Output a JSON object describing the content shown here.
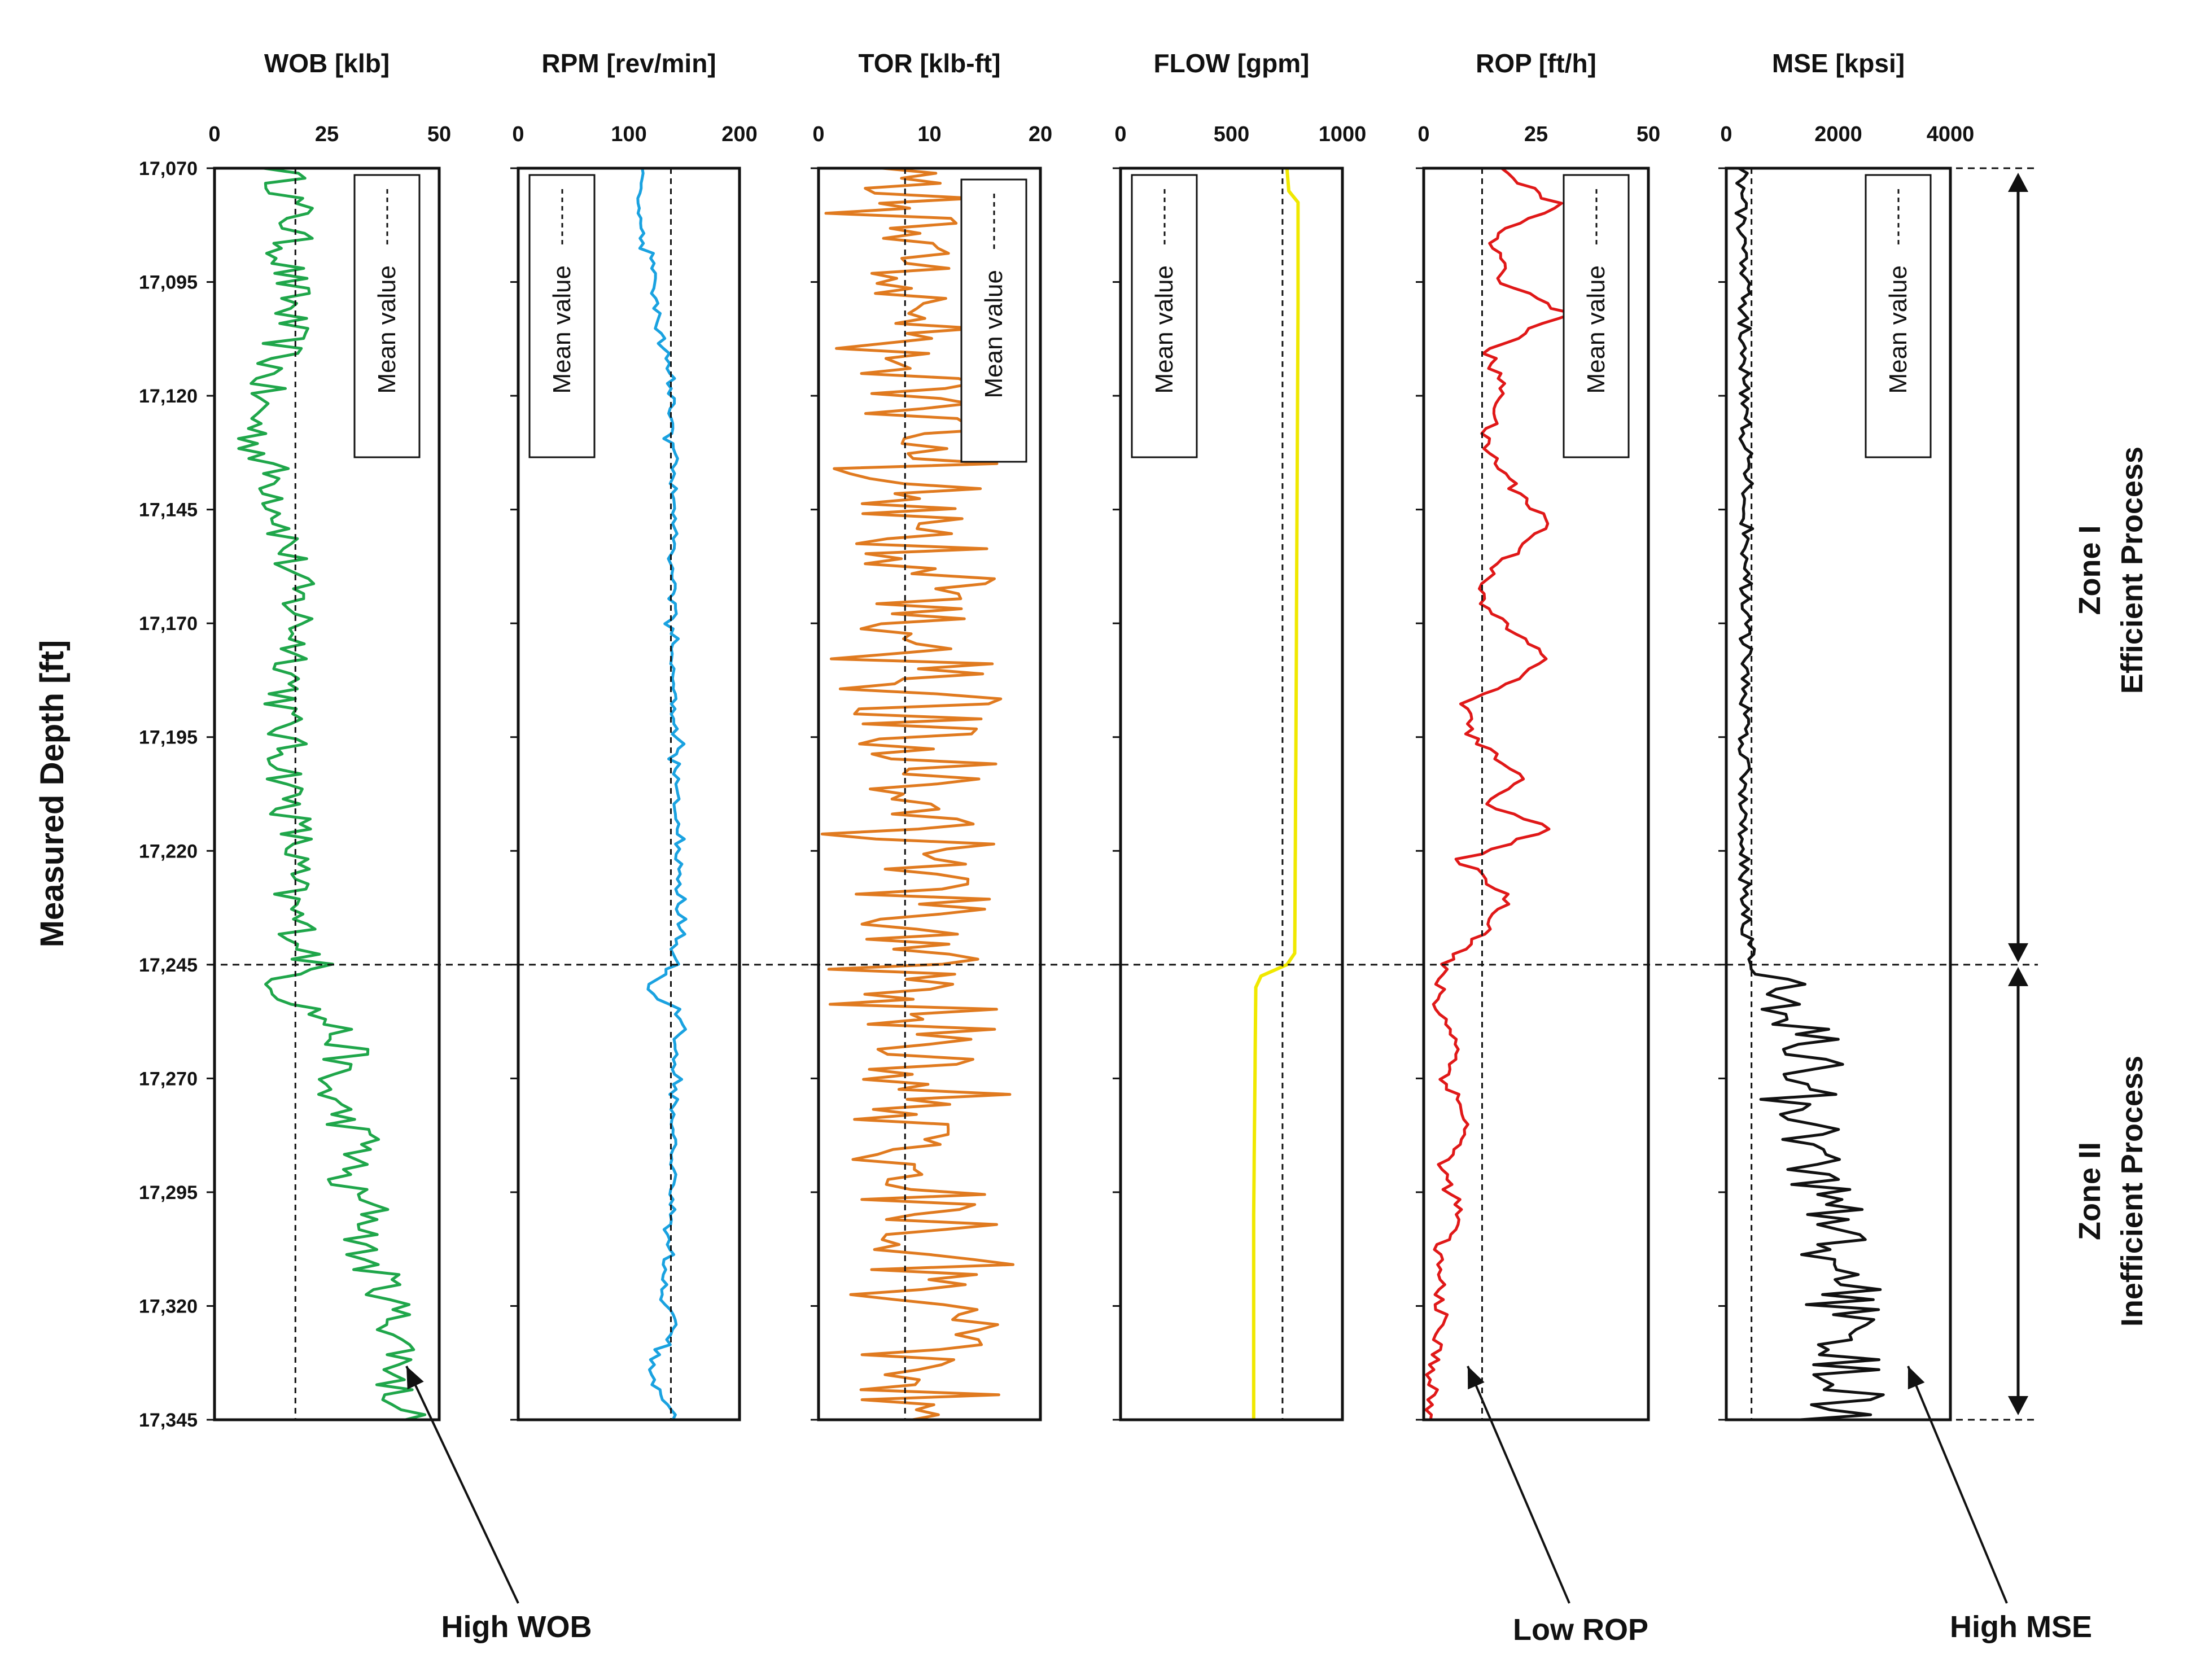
{
  "chart_data": {
    "type": "line",
    "y_axis": {
      "title": "Measured Depth [ft]",
      "range": [
        17070,
        17345
      ],
      "ticks": [
        "17,070",
        "17,095",
        "17,120",
        "17,145",
        "17,170",
        "17,195",
        "17,220",
        "17,245",
        "17,270",
        "17,295",
        "17,320",
        "17,345"
      ],
      "tick_values": [
        17070,
        17095,
        17120,
        17145,
        17170,
        17195,
        17220,
        17245,
        17270,
        17295,
        17320,
        17345
      ],
      "inverted": true
    },
    "legend_label": "Mean value",
    "zone_boundary_depth": 17245,
    "zones": [
      {
        "name": "Zone I",
        "label": "Efficient Process",
        "from": 17070,
        "to": 17245
      },
      {
        "name": "Zone II",
        "label": "Inefficient Process",
        "from": 17245,
        "to": 17345
      }
    ],
    "tracks": [
      {
        "key": "wob",
        "title": "WOB [klb]",
        "xlim": [
          0,
          50
        ],
        "ticks": [
          0,
          25,
          50
        ],
        "tick_labels": [
          "0",
          "25",
          "50"
        ],
        "color": "#1fa64a",
        "mean": 18,
        "knots": [
          [
            17070,
            15
          ],
          [
            17080,
            18
          ],
          [
            17090,
            16
          ],
          [
            17100,
            17
          ],
          [
            17110,
            15
          ],
          [
            17120,
            10
          ],
          [
            17130,
            9
          ],
          [
            17140,
            14
          ],
          [
            17150,
            16
          ],
          [
            17160,
            17
          ],
          [
            17170,
            19
          ],
          [
            17180,
            18
          ],
          [
            17190,
            15
          ],
          [
            17200,
            16
          ],
          [
            17210,
            17
          ],
          [
            17220,
            18
          ],
          [
            17230,
            16
          ],
          [
            17240,
            20
          ],
          [
            17245,
            22
          ],
          [
            17250,
            14
          ],
          [
            17258,
            26
          ],
          [
            17265,
            30
          ],
          [
            17270,
            24
          ],
          [
            17278,
            28
          ],
          [
            17285,
            34
          ],
          [
            17292,
            27
          ],
          [
            17300,
            36
          ],
          [
            17308,
            32
          ],
          [
            17315,
            38
          ],
          [
            17322,
            40
          ],
          [
            17330,
            42
          ],
          [
            17338,
            40
          ],
          [
            17345,
            44
          ]
        ],
        "noise": 5
      },
      {
        "key": "rpm",
        "title": "RPM [rev/min]",
        "xlim": [
          0,
          200
        ],
        "ticks": [
          0,
          100,
          200
        ],
        "tick_labels": [
          "0",
          "100",
          "200"
        ],
        "color": "#1aa2e0",
        "mean": 138,
        "knots": [
          [
            17070,
            110
          ],
          [
            17087,
            112
          ],
          [
            17088,
            122
          ],
          [
            17105,
            124
          ],
          [
            17106,
            132
          ],
          [
            17120,
            138
          ],
          [
            17140,
            141
          ],
          [
            17180,
            140
          ],
          [
            17220,
            144
          ],
          [
            17245,
            144
          ],
          [
            17250,
            113
          ],
          [
            17256,
            145
          ],
          [
            17270,
            140
          ],
          [
            17300,
            140
          ],
          [
            17315,
            130
          ],
          [
            17325,
            142
          ],
          [
            17335,
            118
          ],
          [
            17345,
            142
          ]
        ],
        "noise": 3
      },
      {
        "key": "tor",
        "title": "TOR [klb-ft]",
        "xlim": [
          0,
          20
        ],
        "ticks": [
          0,
          10,
          20
        ],
        "tick_labels": [
          "0",
          "10",
          "20"
        ],
        "color": "#e07a1f",
        "mean": 7.8,
        "knots": [
          [
            17070,
            7
          ],
          [
            17100,
            9
          ],
          [
            17140,
            8
          ],
          [
            17180,
            8
          ],
          [
            17220,
            7
          ],
          [
            17245,
            7
          ],
          [
            17270,
            10
          ],
          [
            17300,
            9
          ],
          [
            17330,
            10
          ],
          [
            17345,
            6
          ]
        ],
        "noise": 8
      },
      {
        "key": "flow",
        "title": "FLOW [gpm]",
        "xlim": [
          0,
          1000
        ],
        "ticks": [
          0,
          500,
          1000
        ],
        "tick_labels": [
          "0",
          "500",
          "1000"
        ],
        "color": "#f0e800",
        "mean": 730,
        "knots": [
          [
            17070,
            750
          ],
          [
            17076,
            760
          ],
          [
            17077,
            800
          ],
          [
            17100,
            800
          ],
          [
            17150,
            795
          ],
          [
            17200,
            790
          ],
          [
            17243,
            785
          ],
          [
            17245,
            750
          ],
          [
            17248,
            610
          ],
          [
            17300,
            600
          ],
          [
            17345,
            600
          ]
        ],
        "noise": 0
      },
      {
        "key": "rop",
        "title": "ROP [ft/h]",
        "xlim": [
          0,
          50
        ],
        "ticks": [
          0,
          25,
          50
        ],
        "tick_labels": [
          "0",
          "25",
          "50"
        ],
        "color": "#e01818",
        "mean": 13,
        "knots": [
          [
            17070,
            16
          ],
          [
            17078,
            30
          ],
          [
            17085,
            15
          ],
          [
            17095,
            18
          ],
          [
            17102,
            32
          ],
          [
            17110,
            14
          ],
          [
            17120,
            18
          ],
          [
            17130,
            13
          ],
          [
            17140,
            20
          ],
          [
            17148,
            28
          ],
          [
            17158,
            16
          ],
          [
            17165,
            12
          ],
          [
            17172,
            20
          ],
          [
            17178,
            28
          ],
          [
            17188,
            9
          ],
          [
            17196,
            11
          ],
          [
            17203,
            22
          ],
          [
            17210,
            15
          ],
          [
            17215,
            28
          ],
          [
            17222,
            8
          ],
          [
            17230,
            19
          ],
          [
            17238,
            14
          ],
          [
            17245,
            4
          ],
          [
            17255,
            3
          ],
          [
            17262,
            8
          ],
          [
            17270,
            5
          ],
          [
            17280,
            10
          ],
          [
            17290,
            4
          ],
          [
            17300,
            8
          ],
          [
            17308,
            3
          ],
          [
            17320,
            4
          ],
          [
            17335,
            2
          ],
          [
            17345,
            1
          ]
        ],
        "noise": 1.5
      },
      {
        "key": "mse",
        "title": "MSE [kpsi]",
        "xlim": [
          0,
          4000
        ],
        "ticks": [
          0,
          2000,
          4000
        ],
        "tick_labels": [
          "0",
          "2000",
          "4000"
        ],
        "color": "#111111",
        "mean": 450,
        "knots": [
          [
            17070,
            200
          ],
          [
            17100,
            250
          ],
          [
            17140,
            300
          ],
          [
            17180,
            280
          ],
          [
            17220,
            250
          ],
          [
            17245,
            350
          ],
          [
            17255,
            900
          ],
          [
            17265,
            1100
          ],
          [
            17275,
            800
          ],
          [
            17285,
            1000
          ],
          [
            17295,
            1300
          ],
          [
            17305,
            1500
          ],
          [
            17315,
            1700
          ],
          [
            17325,
            1600
          ],
          [
            17335,
            1800
          ],
          [
            17345,
            1500
          ]
        ],
        "noise": 900
      }
    ]
  },
  "annotations": [
    {
      "text": "High WOB"
    },
    {
      "text": "Low ROP"
    },
    {
      "text": "High MSE"
    }
  ],
  "zone_labels": {
    "zone1_name": "Zone I",
    "zone1_desc": "Efficient Process",
    "zone2_name": "Zone II",
    "zone2_desc": "Inefficient Process"
  }
}
